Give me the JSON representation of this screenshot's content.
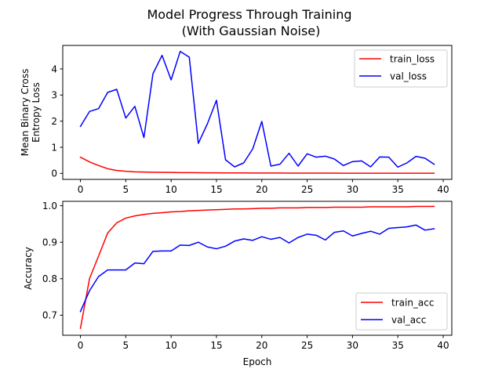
{
  "figure": {
    "title_line1": "Model Progress Through Training",
    "title_line2": "(With Gaussian Noise)"
  },
  "chart_data": [
    {
      "type": "line",
      "xlabel": "",
      "ylabel_line1": "Mean Binary Cross",
      "ylabel_line2": "Entropy Loss",
      "xlim": [
        -1.95,
        40.95
      ],
      "ylim": [
        -0.23,
        4.9
      ],
      "xticks": [
        0,
        5,
        10,
        15,
        20,
        25,
        30,
        35,
        40
      ],
      "yticks": [
        0,
        1,
        2,
        3,
        4
      ],
      "grid": false,
      "legend_position": "top-right",
      "x": [
        0,
        1,
        2,
        3,
        4,
        5,
        6,
        7,
        8,
        9,
        10,
        11,
        12,
        13,
        14,
        15,
        16,
        17,
        18,
        19,
        20,
        21,
        22,
        23,
        24,
        25,
        26,
        27,
        28,
        29,
        30,
        31,
        32,
        33,
        34,
        35,
        36,
        37,
        38,
        39
      ],
      "series": [
        {
          "name": "train_loss",
          "color": "#ff0000",
          "values": [
            0.62,
            0.44,
            0.3,
            0.18,
            0.11,
            0.08,
            0.06,
            0.05,
            0.045,
            0.04,
            0.035,
            0.03,
            0.027,
            0.025,
            0.022,
            0.02,
            0.018,
            0.017,
            0.016,
            0.015,
            0.014,
            0.013,
            0.012,
            0.011,
            0.011,
            0.01,
            0.01,
            0.009,
            0.009,
            0.008,
            0.008,
            0.008,
            0.007,
            0.007,
            0.007,
            0.006,
            0.006,
            0.006,
            0.005,
            0.005
          ]
        },
        {
          "name": "val_loss",
          "color": "#0000ff",
          "values": [
            1.8,
            2.37,
            2.48,
            3.1,
            3.22,
            2.12,
            2.57,
            1.37,
            3.82,
            4.52,
            3.58,
            4.67,
            4.45,
            1.15,
            1.9,
            2.8,
            0.52,
            0.25,
            0.4,
            0.94,
            1.99,
            0.28,
            0.35,
            0.77,
            0.28,
            0.75,
            0.62,
            0.66,
            0.55,
            0.3,
            0.45,
            0.48,
            0.25,
            0.63,
            0.62,
            0.24,
            0.4,
            0.65,
            0.58,
            0.35
          ]
        }
      ]
    },
    {
      "type": "line",
      "xlabel": "Epoch",
      "ylabel": "Accuracy",
      "xlim": [
        -1.95,
        40.95
      ],
      "ylim": [
        0.645,
        1.012
      ],
      "xticks": [
        0,
        5,
        10,
        15,
        20,
        25,
        30,
        35,
        40
      ],
      "yticks": [
        0.7,
        0.8,
        0.9,
        1.0
      ],
      "grid": false,
      "legend_position": "bottom-right",
      "x": [
        0,
        1,
        2,
        3,
        4,
        5,
        6,
        7,
        8,
        9,
        10,
        11,
        12,
        13,
        14,
        15,
        16,
        17,
        18,
        19,
        20,
        21,
        22,
        23,
        24,
        25,
        26,
        27,
        28,
        29,
        30,
        31,
        32,
        33,
        34,
        35,
        36,
        37,
        38,
        39
      ],
      "series": [
        {
          "name": "train_acc",
          "color": "#ff0000",
          "values": [
            0.664,
            0.8,
            0.862,
            0.925,
            0.953,
            0.966,
            0.972,
            0.976,
            0.979,
            0.981,
            0.983,
            0.984,
            0.986,
            0.987,
            0.988,
            0.989,
            0.99,
            0.991,
            0.991,
            0.992,
            0.993,
            0.993,
            0.994,
            0.994,
            0.994,
            0.995,
            0.995,
            0.995,
            0.996,
            0.996,
            0.996,
            0.996,
            0.997,
            0.997,
            0.997,
            0.997,
            0.997,
            0.998,
            0.998,
            0.998
          ]
        },
        {
          "name": "val_acc",
          "color": "#0000ff",
          "values": [
            0.71,
            0.767,
            0.806,
            0.824,
            0.824,
            0.824,
            0.843,
            0.841,
            0.875,
            0.876,
            0.876,
            0.892,
            0.891,
            0.9,
            0.887,
            0.882,
            0.889,
            0.903,
            0.909,
            0.905,
            0.915,
            0.908,
            0.913,
            0.898,
            0.913,
            0.922,
            0.919,
            0.906,
            0.927,
            0.931,
            0.917,
            0.924,
            0.93,
            0.922,
            0.938,
            0.94,
            0.942,
            0.947,
            0.933,
            0.937
          ]
        }
      ]
    }
  ]
}
